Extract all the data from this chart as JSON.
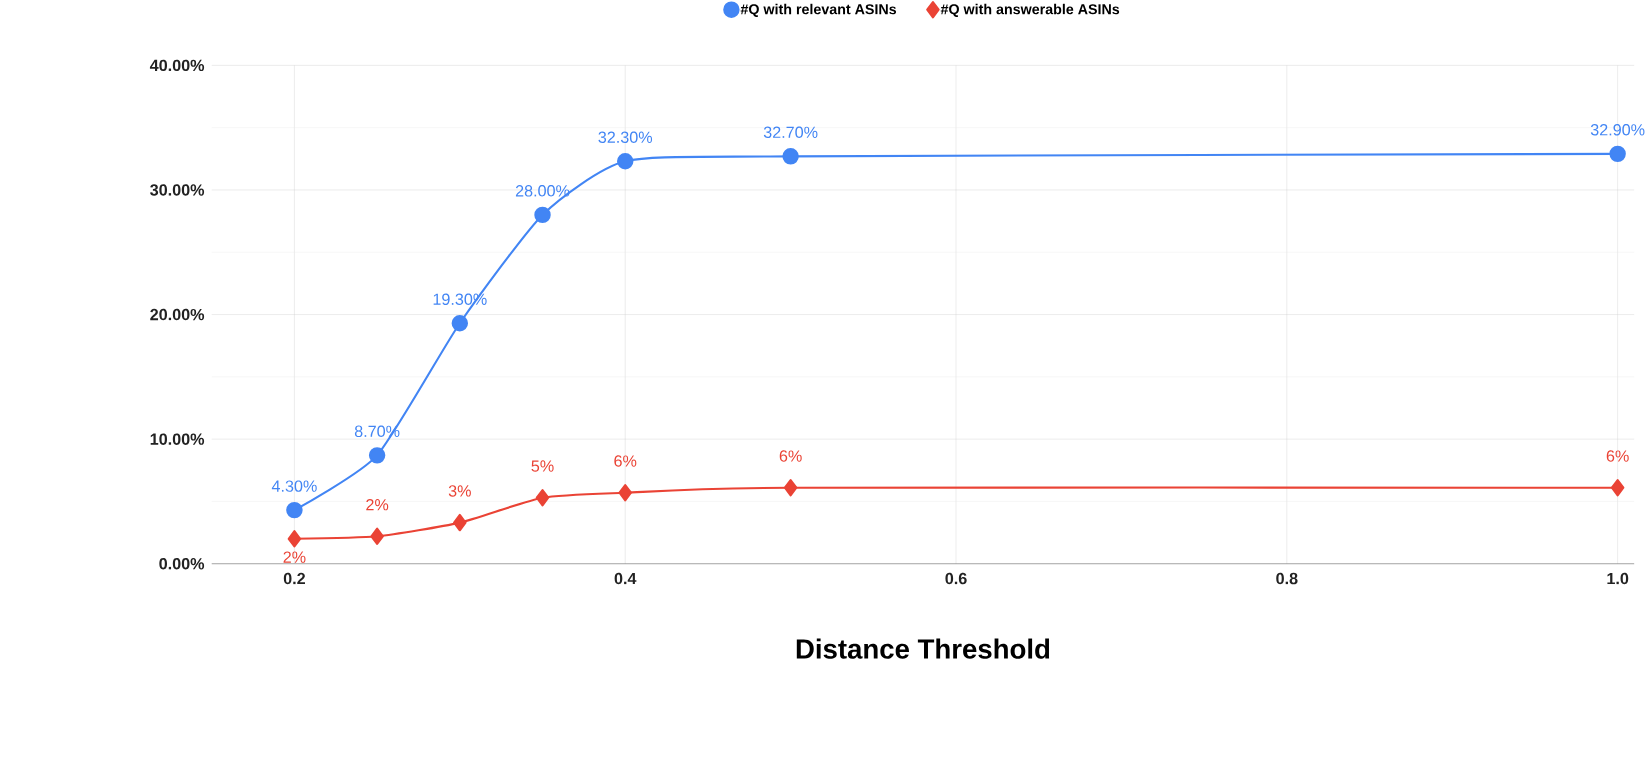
{
  "chart_data": {
    "type": "line",
    "xlabel": "Distance Threshold",
    "x": [
      0.2,
      0.25,
      0.3,
      0.35,
      0.4,
      0.5,
      1.0
    ],
    "series": [
      {
        "name": "#Q with relevant ASINs",
        "color": "#4285f4",
        "marker": "circle",
        "values": [
          4.3,
          8.7,
          19.3,
          28.0,
          32.3,
          32.7,
          32.9
        ],
        "value_labels": [
          "4.30%",
          "8.70%",
          "19.30%",
          "28.00%",
          "32.30%",
          "32.70%",
          "32.90%"
        ]
      },
      {
        "name": "#Q with answerable ASINs",
        "color": "#ea4335",
        "marker": "diamond",
        "values": [
          2.0,
          2.2,
          3.3,
          5.3,
          5.7,
          6.1,
          6.1
        ],
        "value_labels": [
          "2%",
          "2%",
          "3%",
          "5%",
          "6%",
          "6%",
          "6%"
        ]
      }
    ],
    "xlim": [
      0.15,
      1.01
    ],
    "ylim": [
      0,
      40
    ],
    "xticks": [
      0.2,
      0.4,
      0.6,
      0.8,
      {
        "value": 1.0,
        "label": "1.0"
      }
    ],
    "yticks": [
      {
        "value": 0,
        "label": "0.00%"
      },
      {
        "value": 10,
        "label": "10.00%"
      },
      {
        "value": 20,
        "label": "20.00%"
      },
      {
        "value": 30,
        "label": "30.00%"
      },
      {
        "value": 40,
        "label": "40.00%"
      }
    ],
    "grid": true,
    "legend": "top",
    "line_style": "solid"
  }
}
